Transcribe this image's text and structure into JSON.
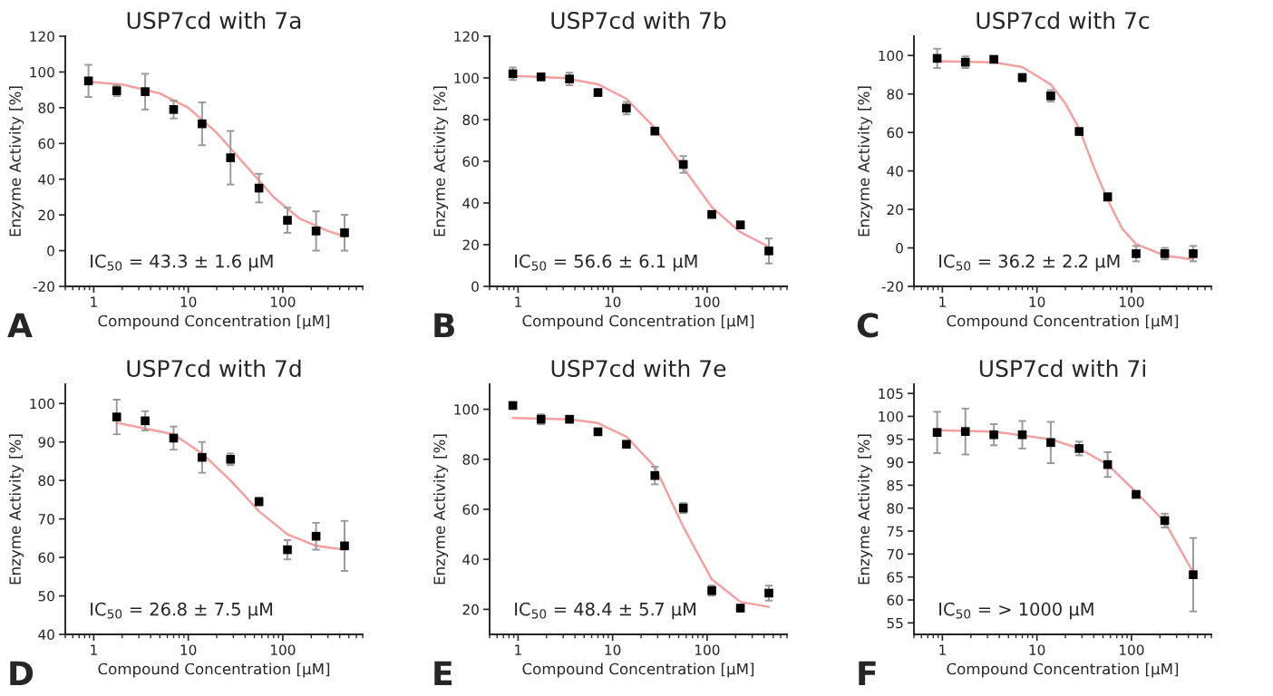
{
  "chart_data": [
    {
      "type": "scatter",
      "title": "USP7cd with 7a",
      "xlabel": "Compound Concentration [μM]",
      "ylabel": "Enzyme Activity [%]",
      "log": "x",
      "xlim": [
        0.5,
        700
      ],
      "xticks": [
        1,
        10,
        100
      ],
      "ylim": [
        -20,
        120
      ],
      "yticks": [
        -20,
        0,
        20,
        40,
        60,
        80,
        100,
        120
      ],
      "grid": false,
      "legend": false,
      "annotations": [
        "IC$_{50}$ = 43.3 ± 1.6 μM",
        "A"
      ],
      "series": [
        {
          "color": "#000000",
          "marker": "square",
          "x": [
            0.88,
            1.75,
            3.5,
            7,
            14,
            28,
            56,
            112,
            225,
            450
          ],
          "values": [
            95,
            89.5,
            89,
            79,
            71,
            52,
            35,
            17,
            11,
            10
          ],
          "errors": [
            9,
            3,
            10,
            5,
            12,
            15,
            8,
            7,
            11,
            10
          ]
        },
        {
          "type": "line",
          "color": "#f4a0a0",
          "x": [
            0.88,
            2,
            5,
            10,
            20,
            40,
            80,
            150,
            300,
            450
          ],
          "values": [
            94.5,
            93,
            88,
            80,
            66,
            48,
            30,
            18,
            11,
            8
          ]
        }
      ]
    },
    {
      "type": "scatter",
      "title": "USP7cd with 7b",
      "xlabel": "Compound Concentration [μM]",
      "ylabel": "Enzyme Activity [%]",
      "log": "x",
      "xlim": [
        0.5,
        700
      ],
      "xticks": [
        1,
        10,
        100
      ],
      "ylim": [
        0,
        120
      ],
      "yticks": [
        0,
        20,
        40,
        60,
        80,
        100,
        120
      ],
      "grid": false,
      "legend": false,
      "annotations": [
        "IC$_{50}$ = 56.6 ± 6.1 μM",
        "B"
      ],
      "series": [
        {
          "color": "#000000",
          "marker": "square",
          "x": [
            0.88,
            1.75,
            3.5,
            7,
            14,
            28,
            56,
            112,
            225,
            450
          ],
          "values": [
            102,
            100.5,
            99.5,
            93,
            85.5,
            74.5,
            58.5,
            34.5,
            29.5,
            17
          ],
          "errors": [
            3,
            1,
            3,
            1,
            3,
            1.5,
            4,
            1.5,
            1,
            6
          ]
        },
        {
          "type": "line",
          "color": "#f4a0a0",
          "x": [
            0.88,
            3,
            7,
            14,
            28,
            56,
            112,
            225,
            450
          ],
          "values": [
            101,
            100,
            97,
            90,
            76,
            57,
            38,
            26,
            19
          ]
        }
      ]
    },
    {
      "type": "scatter",
      "title": "USP7cd with 7c",
      "xlabel": "Compound Concentration [μM]",
      "ylabel": "Enzyme Activity [%]",
      "log": "x",
      "xlim": [
        0.5,
        700
      ],
      "xticks": [
        1,
        10,
        100
      ],
      "ylim": [
        -20,
        110
      ],
      "yticks": [
        -20,
        0,
        20,
        40,
        60,
        80,
        100
      ],
      "grid": false,
      "legend": false,
      "annotations": [
        "IC$_{50}$ = 36.2 ± 2.2 μM",
        "C"
      ],
      "series": [
        {
          "color": "#000000",
          "marker": "square",
          "x": [
            0.88,
            1.75,
            3.5,
            7,
            14,
            28,
            56,
            112,
            225,
            450
          ],
          "values": [
            98.5,
            96.5,
            98,
            88.5,
            79,
            60.5,
            26.5,
            -3,
            -3,
            -3
          ],
          "errors": [
            5,
            3,
            1,
            2,
            3,
            1,
            2,
            4,
            3,
            4
          ]
        },
        {
          "type": "line",
          "color": "#f4a0a0",
          "x": [
            0.88,
            3.5,
            7,
            14,
            20,
            28,
            40,
            56,
            80,
            112,
            225,
            450
          ],
          "values": [
            97,
            96.5,
            94,
            85,
            75,
            62,
            42,
            25,
            10,
            2,
            -4,
            -6
          ]
        }
      ]
    },
    {
      "type": "scatter",
      "title": "USP7cd with 7d",
      "xlabel": "Compound Concentration [μM]",
      "ylabel": "Enzyme Activity [%]",
      "log": "x",
      "xlim": [
        0.5,
        700
      ],
      "xticks": [
        1,
        10,
        100
      ],
      "ylim": [
        40,
        105
      ],
      "yticks": [
        40,
        50,
        60,
        70,
        80,
        90,
        100
      ],
      "grid": false,
      "legend": false,
      "annotations": [
        "IC$_{50}$ = 26.8 ± 7.5 μM",
        "D"
      ],
      "series": [
        {
          "color": "#000000",
          "marker": "square",
          "x": [
            1.75,
            3.5,
            7,
            14,
            28,
            56,
            112,
            225,
            450
          ],
          "values": [
            96.5,
            95.5,
            91,
            86,
            85.5,
            74.5,
            62,
            65.5,
            63
          ],
          "errors": [
            4.5,
            2.5,
            3,
            4,
            1.5,
            1,
            2.5,
            3.5,
            6.5
          ]
        },
        {
          "type": "line",
          "color": "#f4a0a0",
          "x": [
            1.75,
            7,
            14,
            28,
            56,
            112,
            225,
            450
          ],
          "values": [
            95,
            92,
            87,
            80,
            72,
            66,
            63,
            62
          ]
        }
      ]
    },
    {
      "type": "scatter",
      "title": "USP7cd with 7e",
      "xlabel": "Compound Concentration [μM]",
      "ylabel": "Enzyme Activity [%]",
      "log": "x",
      "xlim": [
        0.5,
        700
      ],
      "xticks": [
        1,
        10,
        100
      ],
      "ylim": [
        10,
        110
      ],
      "yticks": [
        20,
        40,
        60,
        80,
        100
      ],
      "grid": false,
      "legend": false,
      "annotations": [
        "IC$_{50}$ = 48.4 ± 5.7 μM",
        "E"
      ],
      "series": [
        {
          "color": "#000000",
          "marker": "square",
          "x": [
            0.88,
            1.75,
            3.5,
            7,
            14,
            28,
            56,
            112,
            225,
            450
          ],
          "values": [
            101.5,
            96,
            96,
            91,
            86,
            73.5,
            60.5,
            27.5,
            20.5,
            26.5
          ],
          "errors": [
            1,
            2,
            1,
            1,
            1,
            3.5,
            2,
            2,
            1,
            3
          ]
        },
        {
          "type": "line",
          "color": "#f4a0a0",
          "x": [
            0.88,
            3.5,
            7,
            14,
            28,
            56,
            112,
            225,
            450
          ],
          "values": [
            96.5,
            96,
            94.5,
            89,
            77,
            53,
            32,
            23,
            21
          ]
        }
      ]
    },
    {
      "type": "scatter",
      "title": "USP7cd with 7i",
      "xlabel": "Compound Concentration [μM]",
      "ylabel": "Enzyme Activity [%]",
      "log": "x",
      "xlim": [
        0.5,
        700
      ],
      "xticks": [
        1,
        10,
        100
      ],
      "ylim": [
        52.5,
        107
      ],
      "yticks": [
        55,
        60,
        65,
        70,
        75,
        80,
        85,
        90,
        95,
        100,
        105
      ],
      "grid": false,
      "legend": false,
      "annotations": [
        "IC$_{50}$ = > 1000 μM",
        "F"
      ],
      "series": [
        {
          "color": "#000000",
          "marker": "square",
          "x": [
            0.88,
            1.75,
            3.5,
            7,
            14,
            28,
            56,
            112,
            225,
            450
          ],
          "values": [
            96.5,
            96.7,
            96,
            96,
            94.3,
            93,
            89.5,
            83,
            77.3,
            65.5
          ],
          "errors": [
            4.5,
            5,
            2.3,
            3,
            4.5,
            1.5,
            2.7,
            0.5,
            1.5,
            8
          ]
        },
        {
          "type": "line",
          "color": "#f4a0a0",
          "x": [
            0.88,
            3.5,
            14,
            28,
            56,
            112,
            225,
            450
          ],
          "values": [
            97,
            96.7,
            95,
            93,
            89.5,
            83.5,
            77,
            66
          ]
        }
      ]
    }
  ]
}
